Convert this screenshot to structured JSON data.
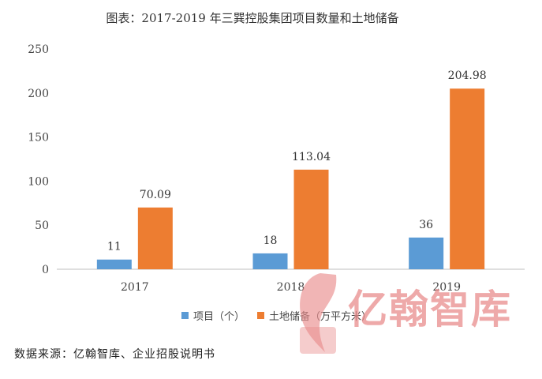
{
  "title": "图表：2017-2019 年三巽控股集团项目数量和土地储备",
  "source": "数据来源：亿翰智库、企业招股说明书",
  "watermark_text": "亿翰智库",
  "chart_data": {
    "type": "bar",
    "categories": [
      "2017",
      "2018",
      "2019"
    ],
    "series": [
      {
        "name": "项目（个）",
        "values": [
          11,
          18,
          36
        ],
        "labels": [
          "11",
          "18",
          "36"
        ],
        "color": "#5b9bd5"
      },
      {
        "name": "土地储备（万平方米）",
        "values": [
          70.09,
          113.04,
          204.98
        ],
        "labels": [
          "70.09",
          "113.04",
          "204.98"
        ],
        "color": "#ed7d31"
      }
    ],
    "yticks": [
      "0",
      "50",
      "100",
      "150",
      "200",
      "250"
    ],
    "ylim": [
      0,
      250
    ],
    "legend_position": "bottom"
  }
}
